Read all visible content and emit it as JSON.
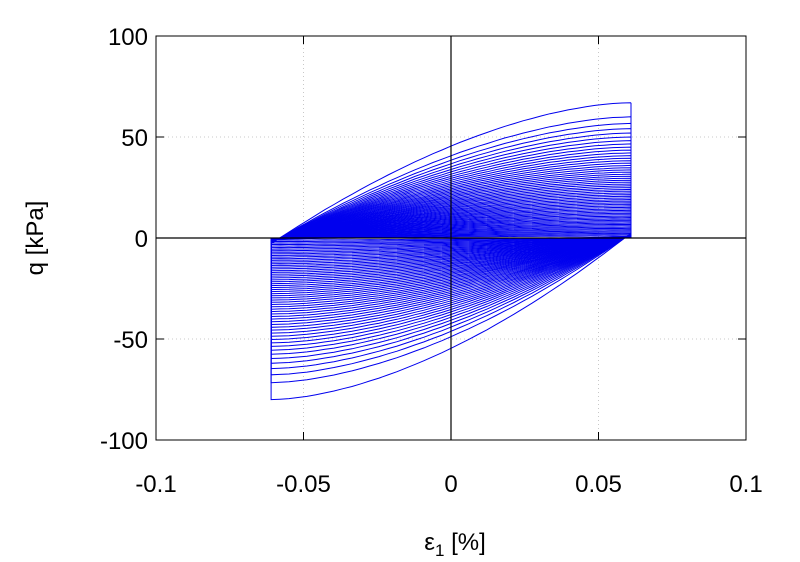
{
  "chart_data": {
    "type": "line",
    "title": "",
    "xlabel": "ε",
    "xlabel_sub": "1",
    "xlabel_unit": " [%]",
    "ylabel": "q [kPa]",
    "xlim": [
      -0.1,
      0.1
    ],
    "ylim": [
      -100,
      100
    ],
    "xticks": [
      -0.1,
      -0.05,
      0,
      0.05,
      0.1
    ],
    "xtick_labels": [
      "-0.1",
      "-0.05",
      "0",
      "0.05",
      "0.1"
    ],
    "yticks": [
      -100,
      -50,
      0,
      50,
      100
    ],
    "ytick_labels": [
      "-100",
      "-50",
      "0",
      "50",
      "100"
    ],
    "grid": true,
    "zero_lines": true,
    "line_color": "#0000ee",
    "cycles": {
      "count": 60,
      "strain_amplitude": 0.061,
      "first_cycle": {
        "q_max": 67,
        "q_min": -80
      },
      "last_cycle": {
        "q_max": 1,
        "q_min": -1
      }
    }
  }
}
